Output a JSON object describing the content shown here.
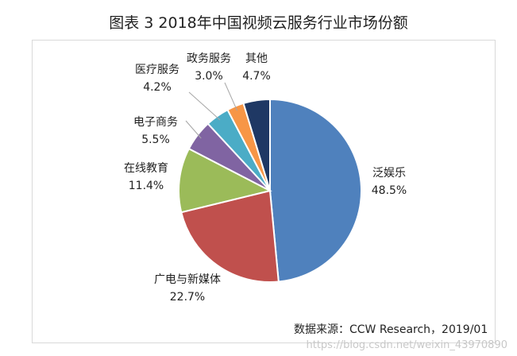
{
  "title": "图表 3 2018年中国视频云服务行业市场份额",
  "source": "数据来源：CCW Research，2019/01",
  "watermark": "https://blog.csdn.net/weixin_43970890",
  "chart_data": {
    "type": "pie",
    "title": "图表 3 2018年中国视频云服务行业市场份额",
    "categories": [
      "泛娱乐",
      "广电与新媒体",
      "在线教育",
      "电子商务",
      "医疗服务",
      "政务服务",
      "其他"
    ],
    "values": [
      48.5,
      22.7,
      11.4,
      5.5,
      4.2,
      3.0,
      4.7
    ],
    "value_labels": [
      "48.5%",
      "22.7%",
      "11.4%",
      "5.5%",
      "4.2%",
      "3.0%",
      "4.7%"
    ],
    "colors": [
      "#4f81bd",
      "#c0504d",
      "#9bbb59",
      "#8064a2",
      "#4bacc6",
      "#f79646",
      "#1f3864"
    ],
    "start": "12 o'clock",
    "direction": "clockwise",
    "legend": "none"
  }
}
